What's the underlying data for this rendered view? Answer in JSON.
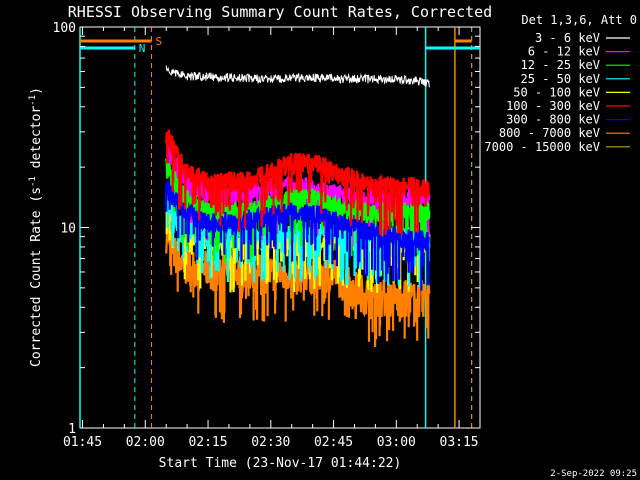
{
  "chart_data": {
    "type": "line",
    "title": "RHESSI Observing Summary Count Rates, Corrected",
    "xlabel": "Start Time (23-Nov-17 01:44:22)",
    "ylabel_main": "Corrected Count Rate (s",
    "ylabel_sup1": "-1",
    "ylabel_mid": " detector",
    "ylabel_sup2": "-1",
    "ylabel_end": ")",
    "footer_date": "2-Sep-2022 09:25",
    "xlim_minutes": [
      104.4,
      200
    ],
    "ylim": [
      1,
      100
    ],
    "y_scale": "log",
    "x_ticks": [
      {
        "t": 105,
        "label": "01:45"
      },
      {
        "t": 120,
        "label": "02:00"
      },
      {
        "t": 135,
        "label": "02:15"
      },
      {
        "t": 150,
        "label": "02:30"
      },
      {
        "t": 165,
        "label": "02:45"
      },
      {
        "t": 180,
        "label": "03:00"
      },
      {
        "t": 195,
        "label": "03:15"
      }
    ],
    "y_ticks": [
      {
        "v": 1,
        "label": "1"
      },
      {
        "v": 10,
        "label": "10"
      },
      {
        "v": 100,
        "label": "100"
      }
    ],
    "legend_header": "Det 1,3,6, Att 0",
    "legend_placement": "top-right, outside plot",
    "series": [
      {
        "name": "3 - 6 keV",
        "color": "#ffffff",
        "x": [
          125,
          126,
          130,
          140,
          150,
          160,
          170,
          180,
          185,
          188
        ],
        "y": [
          64,
          60,
          57,
          56,
          55,
          56,
          55,
          55,
          54,
          52
        ]
      },
      {
        "name": "6 - 12 keV",
        "color": "#ff00ff",
        "x": [
          125,
          127,
          130,
          135,
          145,
          150,
          155,
          160,
          165,
          170,
          180,
          188
        ],
        "y": [
          26,
          21,
          17,
          15,
          15,
          16,
          16,
          16,
          15,
          14,
          14,
          14
        ]
      },
      {
        "name": "12 - 25 keV",
        "color": "#00ff00",
        "x": [
          125,
          127,
          130,
          135,
          145,
          150,
          155,
          160,
          165,
          170,
          180,
          188
        ],
        "y": [
          20,
          17,
          14,
          12,
          12,
          13,
          14,
          14,
          13,
          12,
          12,
          12
        ]
      },
      {
        "name": "25 - 50 keV",
        "color": "#00ffff",
        "x": [
          125,
          127,
          130,
          140,
          150,
          160,
          170,
          180,
          188
        ],
        "y": [
          13,
          11,
          10,
          9.5,
          9.5,
          9.5,
          9,
          9,
          9
        ]
      },
      {
        "name": "50 - 100 keV",
        "color": "#ffff00",
        "x": [
          125,
          127,
          130,
          140,
          150,
          160,
          170,
          180,
          188
        ],
        "y": [
          14,
          11,
          9,
          8.5,
          8.5,
          8.5,
          8.5,
          8.5,
          8.5
        ]
      },
      {
        "name": "100 - 300 keV",
        "color": "#ff0000",
        "x": [
          125,
          127,
          130,
          135,
          145,
          150,
          155,
          160,
          163,
          168,
          175,
          180,
          188
        ],
        "y": [
          30,
          24,
          19,
          17,
          17,
          19,
          21,
          21,
          20,
          18,
          16,
          16,
          16
        ]
      },
      {
        "name": "300 - 800 keV",
        "color": "#0000ff",
        "x": [
          125,
          127,
          130,
          135,
          145,
          150,
          155,
          160,
          165,
          170,
          180,
          188
        ],
        "y": [
          16,
          14,
          12,
          10.5,
          11,
          11.5,
          12,
          12,
          11,
          10,
          9,
          8.5
        ]
      },
      {
        "name": "800 - 7000 keV",
        "color": "#ff8000",
        "x": [
          125,
          127,
          130,
          140,
          150,
          160,
          165,
          170,
          175,
          180,
          188
        ],
        "y": [
          9.5,
          7.5,
          6.5,
          6,
          6,
          6,
          6,
          5,
          4.5,
          4.5,
          4.5
        ]
      },
      {
        "name": "7000 - 15000 keV",
        "color": "#c8a000",
        "x": [
          125,
          130,
          140,
          150,
          160,
          170,
          180,
          188
        ],
        "y": [
          5,
          5,
          5,
          5,
          5,
          4.5,
          4.5,
          4.5
        ],
        "hidden": true
      }
    ],
    "annotations": {
      "saa_label": "S",
      "night_label": "N",
      "saa_color": "#ff8000",
      "night_color": "#00ffff",
      "night_intervals": [
        [
          104.4,
          117.5
        ],
        [
          187,
          200
        ]
      ],
      "saa_intervals": [
        [
          104.4,
          121.5
        ],
        [
          194,
          198
        ]
      ],
      "solid_cyan_lines": [
        104.4,
        187
      ],
      "dashed_cyan_lines": [
        117.5,
        198
      ],
      "dashed_orange_lines": [
        121.5,
        198
      ],
      "solid_orange_lines": [
        194
      ]
    }
  }
}
